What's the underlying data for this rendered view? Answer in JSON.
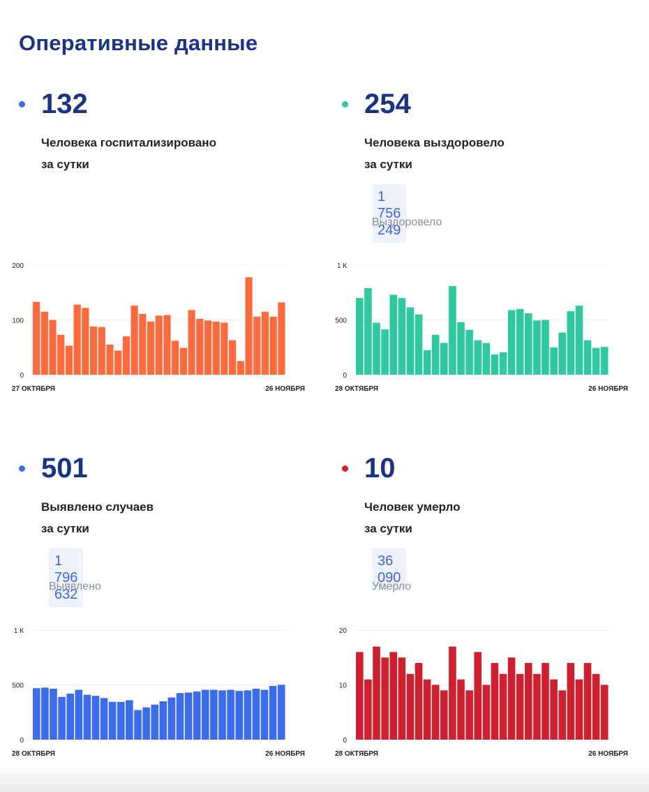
{
  "page": {
    "title": "Оперативные данные"
  },
  "stats": [
    {
      "id": "hosp",
      "value": "132",
      "dot_color": "#3b6cf0",
      "desc_line1": "Человека госпитализировано",
      "desc_line2": "за сутки"
    },
    {
      "id": "recov",
      "value": "254",
      "dot_color": "#2fc9a0",
      "desc_line1": "Человека выздоровело",
      "desc_line2": "за сутки",
      "total": "1 756 249",
      "total_label": "Выздоровело"
    },
    {
      "id": "cases",
      "value": "501",
      "dot_color": "#3b6cf0",
      "desc_line1": "Выявлено случаев",
      "desc_line2": "за сутки",
      "total": "1 796 632",
      "total_label": "Выявлено"
    },
    {
      "id": "deaths",
      "value": "10",
      "dot_color": "#d01f2f",
      "desc_line1": "Человек умерло",
      "desc_line2": "за сутки",
      "total": "36 090",
      "total_label": "Умерло"
    }
  ],
  "chart_data": [
    {
      "type": "bar",
      "title": "Госпитализировано за сутки",
      "color": "#ff6a3c",
      "ylim": [
        0,
        200
      ],
      "yticks": [
        0,
        100,
        200
      ],
      "ytick_labels": [
        "0",
        "100",
        "200"
      ],
      "x_start_label": "27 ОКТЯБРЯ",
      "x_end_label": "26 НОЯБРЯ",
      "values": [
        133,
        115,
        100,
        73,
        53,
        128,
        122,
        88,
        87,
        55,
        44,
        70,
        126,
        111,
        97,
        108,
        109,
        62,
        49,
        118,
        102,
        99,
        97,
        95,
        63,
        25,
        178,
        106,
        115,
        106,
        132
      ]
    },
    {
      "type": "bar",
      "title": "Выздоровело за сутки",
      "color": "#2fc9a0",
      "ylim": [
        0,
        1000
      ],
      "yticks": [
        0,
        500,
        1000
      ],
      "ytick_labels": [
        "0",
        "500",
        "1 К"
      ],
      "x_start_label": "28 ОКТЯБРЯ",
      "x_end_label": "26 НОЯБРЯ",
      "values": [
        700,
        790,
        475,
        415,
        730,
        700,
        615,
        550,
        225,
        365,
        290,
        810,
        480,
        410,
        315,
        290,
        185,
        205,
        590,
        600,
        560,
        495,
        500,
        250,
        385,
        580,
        630,
        315,
        245,
        254
      ]
    },
    {
      "type": "bar",
      "title": "Выявлено случаев за сутки",
      "color": "#3b6cf0",
      "ylim": [
        0,
        1000
      ],
      "yticks": [
        0,
        500,
        1000
      ],
      "ytick_labels": [
        "0",
        "500",
        "1 К"
      ],
      "x_start_label": "28 ОКТЯБРЯ",
      "x_end_label": "26 НОЯБРЯ",
      "values": [
        470,
        475,
        465,
        390,
        420,
        455,
        410,
        400,
        380,
        345,
        345,
        360,
        270,
        295,
        320,
        350,
        385,
        425,
        430,
        440,
        455,
        455,
        450,
        455,
        445,
        450,
        465,
        455,
        490,
        501
      ]
    },
    {
      "type": "bar",
      "title": "Умерло за сутки",
      "color": "#d01f2f",
      "ylim": [
        0,
        20
      ],
      "yticks": [
        0,
        10,
        20
      ],
      "ytick_labels": [
        "0",
        "10",
        "20"
      ],
      "x_start_label": "28 ОКТЯБРЯ",
      "x_end_label": "26 НОЯБРЯ",
      "values": [
        16,
        11,
        17,
        15,
        16,
        15,
        12,
        14,
        11,
        10,
        9,
        17,
        11,
        9,
        16,
        10,
        14,
        12,
        15,
        12,
        14,
        12,
        14,
        11,
        9,
        14,
        11,
        14,
        12,
        10
      ]
    }
  ]
}
